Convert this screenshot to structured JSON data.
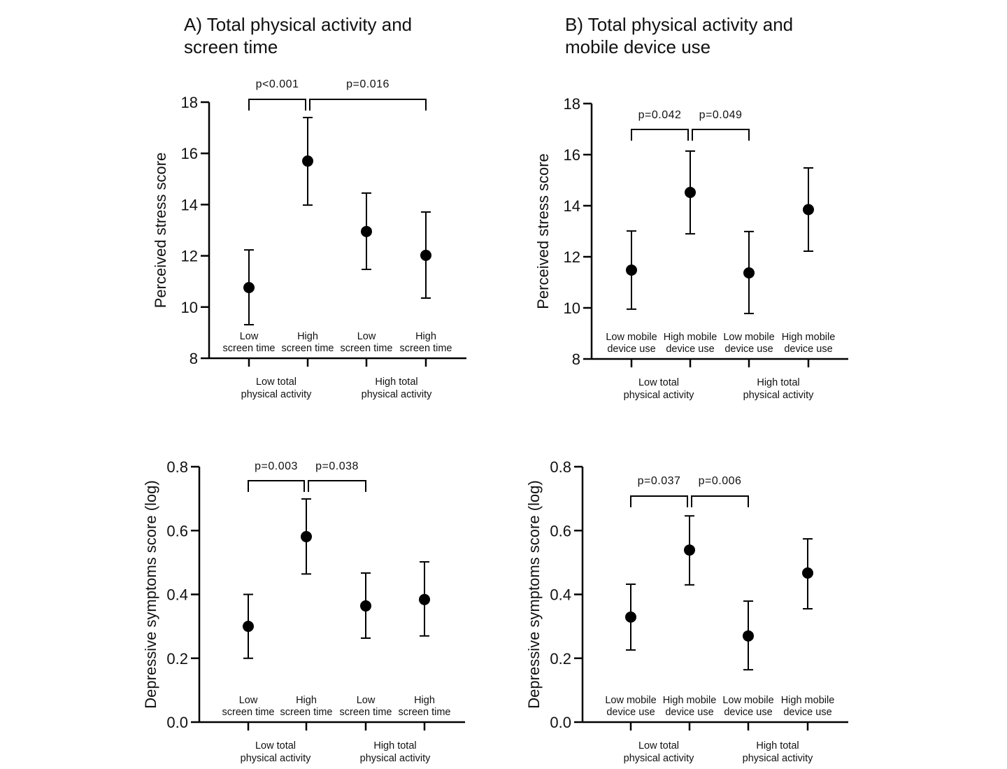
{
  "chart_data": [
    {
      "type": "scatter",
      "title": [
        "A) Total physical activity and",
        "screen time"
      ],
      "ylabel": "Perceived stress score",
      "ylim": [
        8,
        18
      ],
      "yticks": [
        "8",
        "10",
        "12",
        "14",
        "16",
        "18"
      ],
      "categories": [
        [
          "Low",
          "screen time"
        ],
        [
          "High",
          "screen time"
        ],
        [
          "Low",
          "screen time"
        ],
        [
          "High",
          "screen time"
        ]
      ],
      "groups": [
        [
          "Low total",
          "physical activity"
        ],
        [
          "High total",
          "physical activity"
        ]
      ],
      "values": [
        10.76,
        15.7,
        12.95,
        12.02
      ],
      "error_upper": [
        12.23,
        17.4,
        14.45,
        13.71
      ],
      "error_lower": [
        9.31,
        13.98,
        11.47,
        10.35
      ],
      "comparisons": [
        {
          "from": 0,
          "to": 1,
          "label": "p<0.001"
        },
        {
          "from": 1,
          "to": 3,
          "label": "p=0.016"
        }
      ]
    },
    {
      "type": "scatter",
      "title": [
        "B) Total physical activity and",
        "mobile device use"
      ],
      "ylabel": "Perceived stress score",
      "ylim": [
        8,
        18
      ],
      "yticks": [
        "8",
        "10",
        "12",
        "14",
        "16",
        "18"
      ],
      "categories": [
        [
          "Low mobile",
          "device use"
        ],
        [
          "High mobile",
          "device use"
        ],
        [
          "Low mobile",
          "device use"
        ],
        [
          "High mobile",
          "device use"
        ]
      ],
      "groups": [
        [
          "Low total",
          "physical activity"
        ],
        [
          "High total",
          "physical activity"
        ]
      ],
      "values": [
        11.48,
        14.52,
        11.37,
        13.85
      ],
      "error_upper": [
        13.01,
        16.14,
        12.99,
        15.48
      ],
      "error_lower": [
        9.95,
        12.9,
        9.78,
        12.22
      ],
      "comparisons": [
        {
          "from": 0,
          "to": 1,
          "label": "p=0.042"
        },
        {
          "from": 1,
          "to": 2,
          "label": "p=0.049"
        }
      ]
    },
    {
      "type": "scatter",
      "title": [],
      "ylabel": "Depressive symptoms score (log)",
      "ylim": [
        0,
        0.8
      ],
      "yticks": [
        "0.0",
        "0.2",
        "0.4",
        "0.6",
        "0.8"
      ],
      "categories": [
        [
          "Low",
          "screen time"
        ],
        [
          "High",
          "screen time"
        ],
        [
          "Low",
          "screen time"
        ],
        [
          "High",
          "screen time"
        ]
      ],
      "groups": [
        [
          "Low total",
          "physical activity"
        ],
        [
          "High total",
          "physical activity"
        ]
      ],
      "values": [
        0.3,
        0.581,
        0.364,
        0.384
      ],
      "error_upper": [
        0.4,
        0.699,
        0.467,
        0.502
      ],
      "error_lower": [
        0.2,
        0.464,
        0.263,
        0.27
      ],
      "comparisons": [
        {
          "from": 0,
          "to": 1,
          "label": "p=0.003"
        },
        {
          "from": 1,
          "to": 2,
          "label": "p=0.038"
        }
      ]
    },
    {
      "type": "scatter",
      "title": [],
      "ylabel": "Depressive symptoms score (log)",
      "ylim": [
        0,
        0.8
      ],
      "yticks": [
        "0.0",
        "0.2",
        "0.4",
        "0.6",
        "0.8"
      ],
      "categories": [
        [
          "Low mobile",
          "device use"
        ],
        [
          "High mobile",
          "device use"
        ],
        [
          "Low mobile",
          "device use"
        ],
        [
          "High mobile",
          "device use"
        ]
      ],
      "groups": [
        [
          "Low total",
          "physical activity"
        ],
        [
          "High total",
          "physical activity"
        ]
      ],
      "values": [
        0.329,
        0.539,
        0.27,
        0.467
      ],
      "error_upper": [
        0.432,
        0.646,
        0.379,
        0.574
      ],
      "error_lower": [
        0.226,
        0.43,
        0.164,
        0.355
      ],
      "comparisons": [
        {
          "from": 0,
          "to": 1,
          "label": "p=0.037"
        },
        {
          "from": 1,
          "to": 2,
          "label": "p=0.006"
        }
      ]
    }
  ]
}
